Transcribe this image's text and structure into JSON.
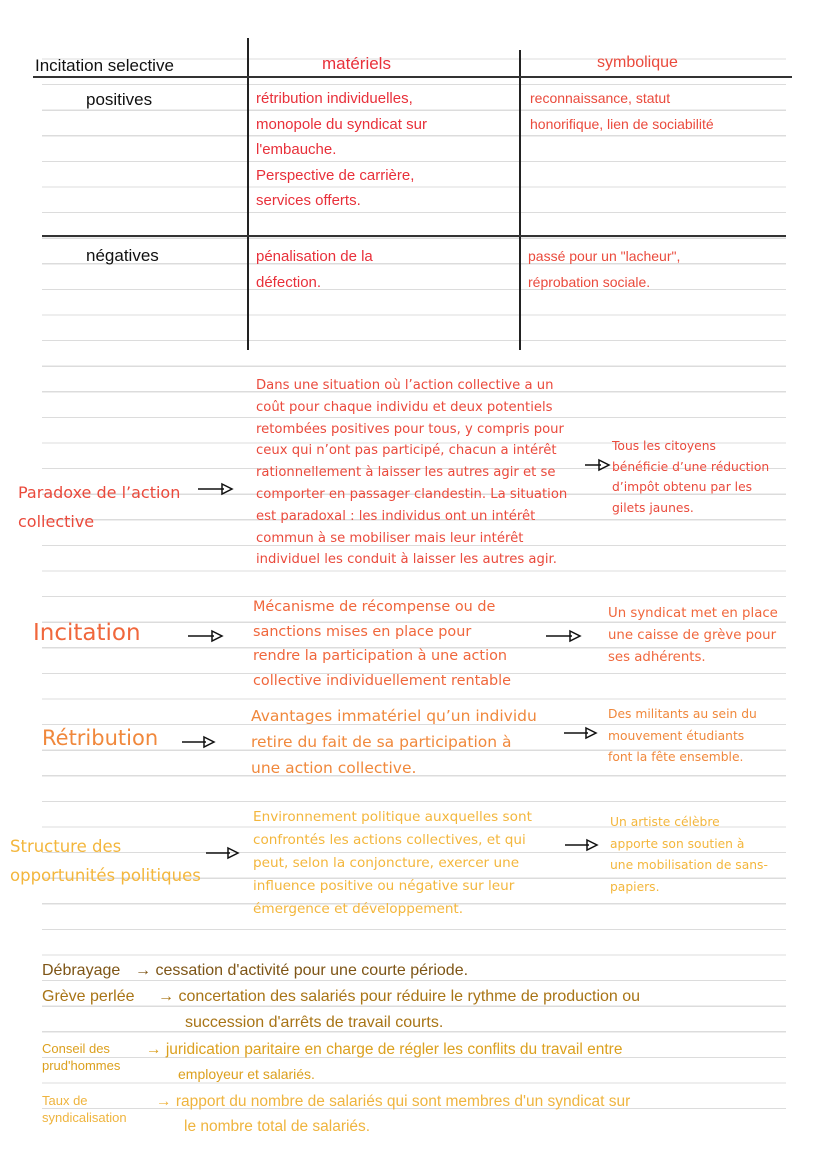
{
  "table": {
    "title": "Incitation selective",
    "columns": [
      "matériels",
      "symbolique"
    ],
    "rows": [
      {
        "label": "positives",
        "materiels": [
          "rétribution individuelles,",
          "monopole du syndicat sur",
          "l'embauche.",
          "Perspective de carrière,",
          "services offerts."
        ],
        "symbolique": [
          "reconnaissance, statut",
          "honorifique, lien de sociabilité"
        ]
      },
      {
        "label": "négatives",
        "materiels": [
          "pénalisation de la",
          " défection."
        ],
        "symbolique": [
          "passé pour un \"lacheur\",",
          "réprobation sociale."
        ]
      }
    ]
  },
  "concepts": [
    {
      "label": [
        "Paradoxe de l’action",
        "collective"
      ],
      "definition": [
        "Dans une situation où l’action collective a un",
        "coût pour chaque individu et deux potentiels",
        "retombées positives pour tous, y compris pour",
        "ceux qui n’ont pas participé, chacun a intérêt",
        "rationnellement à laisser les autres agir et se",
        "comporter en passager clandestin. La situation",
        "est paradoxal : les individus ont un intérêt",
        "commun à se mobiliser mais leur intérêt",
        "individuel les conduit à laisser les autres agir."
      ],
      "example": [
        "Tous les citoyens",
        "bénéficie d’une réduction",
        "d’impôt obtenu par les",
        "gilets jaunes."
      ],
      "color": "#ea4a3c"
    },
    {
      "label": [
        "Incitation"
      ],
      "definition": [
        "Mécanisme de récompense ou de",
        "sanctions mises en place pour",
        "rendre la participation à une action",
        "collective individuellement rentable"
      ],
      "example": [
        "Un syndicat met en place",
        "une caisse de grève pour",
        "ses adhérents."
      ],
      "color": "#f0673c"
    },
    {
      "label": [
        "Rétribution"
      ],
      "definition": [
        "Avantages immatériel qu’un individu",
        "retire du fait de sa participation à",
        "une action collective."
      ],
      "example": [
        "Des militants au sein du",
        "mouvement étudiants",
        "font la fête ensemble."
      ],
      "color": "#f0883c"
    },
    {
      "label": [
        "Structure des",
        "opportunités politiques"
      ],
      "definition": [
        "Environnement politique auxquelles sont",
        "confrontés les actions collectives, et qui",
        "peut, selon la conjoncture, exercer une",
        "influence positive ou négative sur leur",
        "émergence et développement."
      ],
      "example": [
        "Un artiste célèbre",
        "apporte son soutien à",
        "une mobilisation de sans-",
        "papiers."
      ],
      "color": "#f3b63c"
    }
  ],
  "glossary": [
    {
      "term": [
        "Débrayage"
      ],
      "definition": [
        "cessation d'activité pour une courte période."
      ],
      "color": "#7e5516"
    },
    {
      "term": [
        "Grève perlée"
      ],
      "definition": [
        "concertation des salariés pour réduire le rythme de production ou",
        "succession d'arrêts de travail courts."
      ],
      "color": "#a87416"
    },
    {
      "term": [
        "Conseil des",
        "prud'hommes"
      ],
      "definition": [
        "juridication paritaire en charge de régler les conflits du travail entre",
        "employeur et salariés."
      ],
      "color": "#dca01e"
    },
    {
      "term": [
        "Taux de",
        "syndicalisation"
      ],
      "definition": [
        "rapport du nombre de salariés qui sont membres d'un syndicat sur",
        "le nombre total de salariés."
      ],
      "color": "#efb43e"
    }
  ],
  "icons": {
    "arrow": "arrow-right-icon"
  }
}
